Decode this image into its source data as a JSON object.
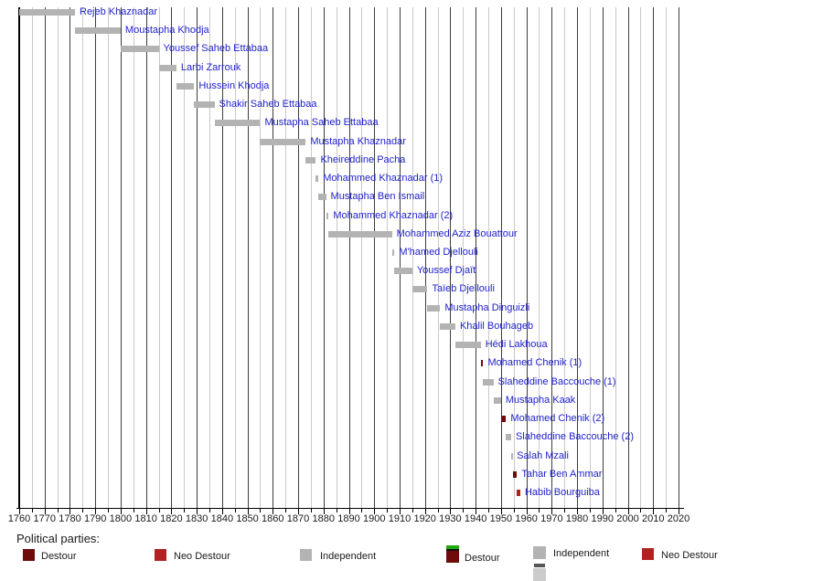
{
  "chart_data": {
    "type": "bar",
    "subtype": "timeline-gantt",
    "title": "",
    "x_axis": {
      "min": 1760,
      "max": 2020,
      "major_tick_step": 10,
      "minor_tick_step": 5,
      "tick_labels": [
        "1760",
        "1770",
        "1780",
        "1790",
        "1800",
        "1810",
        "1820",
        "1830",
        "1840",
        "1850",
        "1860",
        "1870",
        "1880",
        "1890",
        "1900",
        "1910",
        "1920",
        "1930",
        "1940",
        "1950",
        "1960",
        "1970",
        "1980",
        "1990",
        "2000",
        "2010",
        "2020"
      ]
    },
    "rows": [
      {
        "name": "Rejeb Khaznadar",
        "start": 1759,
        "end": 1782,
        "party": "independent"
      },
      {
        "name": "Moustapha Khodja",
        "start": 1782,
        "end": 1800,
        "party": "independent"
      },
      {
        "name": "Youssef Saheb Ettabaa",
        "start": 1800,
        "end": 1815,
        "party": "independent"
      },
      {
        "name": "Larbi Zarrouk",
        "start": 1815,
        "end": 1822,
        "party": "independent"
      },
      {
        "name": "Hussein Khodja",
        "start": 1822,
        "end": 1829,
        "party": "independent"
      },
      {
        "name": "Shakir Saheb Ettabaa",
        "start": 1829,
        "end": 1837,
        "party": "independent"
      },
      {
        "name": "Mustapha Saheb Ettabaa",
        "start": 1837,
        "end": 1855,
        "party": "independent"
      },
      {
        "name": "Mustapha Khaznadar",
        "start": 1855,
        "end": 1873,
        "party": "independent"
      },
      {
        "name": "Kheireddine Pacha",
        "start": 1873,
        "end": 1877,
        "party": "independent"
      },
      {
        "name": "Mohammed Khaznadar (1)",
        "start": 1877,
        "end": 1878,
        "party": "independent"
      },
      {
        "name": "Mustapha Ben Ismail",
        "start": 1878,
        "end": 1881,
        "party": "independent"
      },
      {
        "name": "Mohammed Khaznadar (2)",
        "start": 1881,
        "end": 1882,
        "party": "independent"
      },
      {
        "name": "Mohammed Aziz Bouattour",
        "start": 1882,
        "end": 1907,
        "party": "independent"
      },
      {
        "name": "M'hamed Djellouli",
        "start": 1907,
        "end": 1908,
        "party": "independent"
      },
      {
        "name": "Youssef Djaït",
        "start": 1908,
        "end": 1915,
        "party": "independent"
      },
      {
        "name": "Taïeb Djellouli",
        "start": 1915,
        "end": 1921,
        "party": "independent"
      },
      {
        "name": "Mustapha Dinguizli",
        "start": 1921,
        "end": 1926,
        "party": "independent"
      },
      {
        "name": "Khalil Bouhageb",
        "start": 1926,
        "end": 1932,
        "party": "independent"
      },
      {
        "name": "Hédi Lakhoua",
        "start": 1932,
        "end": 1942,
        "party": "independent"
      },
      {
        "name": "Mohamed Chenik (1)",
        "start": 1942,
        "end": 1943,
        "party": "destour"
      },
      {
        "name": "Slaheddine Baccouche (1)",
        "start": 1943,
        "end": 1947,
        "party": "independent"
      },
      {
        "name": "Mustapha Kaak",
        "start": 1947,
        "end": 1950,
        "party": "independent"
      },
      {
        "name": "Mohamed Chenik (2)",
        "start": 1950,
        "end": 1952,
        "party": "destour"
      },
      {
        "name": "Slaheddine Baccouche (2)",
        "start": 1952,
        "end": 1954,
        "party": "independent"
      },
      {
        "name": "Salah Mzali",
        "start": 1954,
        "end": 1954.4,
        "party": "independent"
      },
      {
        "name": "Tahar Ben Ammar",
        "start": 1954.6,
        "end": 1956.3,
        "party": "destour"
      },
      {
        "name": "Habib Bourguiba",
        "start": 1956.3,
        "end": 1957.6,
        "party": "neo_destour"
      }
    ],
    "colors": {
      "independent": "#b3b3b3",
      "destour": "#6e0c0c",
      "neo_destour": "#b22222",
      "legend_green": "#1faa10",
      "legend_black": "#111111",
      "legend_dark_gray": "#555555",
      "legend_light_gray": "#cccccc",
      "row_label": "#2121cc",
      "grid_dark": "#3d3d3d",
      "grid_light": "#c9c9c9"
    },
    "grid": "on",
    "legend_position": "bottom"
  },
  "legend": {
    "heading": "Political parties:",
    "groups": [
      {
        "items": [
          {
            "label": "Destour",
            "swatch": "destour"
          },
          {
            "label": "Neo Destour",
            "swatch": "neo_destour"
          },
          {
            "label": "Independent",
            "swatch": "independent"
          }
        ]
      },
      {
        "items": [
          {
            "label": "Destour",
            "swatch": "destour_stacked"
          },
          {
            "label": "Independent",
            "swatch": "independent_stacked"
          },
          {
            "label": "Neo Destour",
            "swatch": "neo_destour"
          }
        ]
      }
    ]
  }
}
